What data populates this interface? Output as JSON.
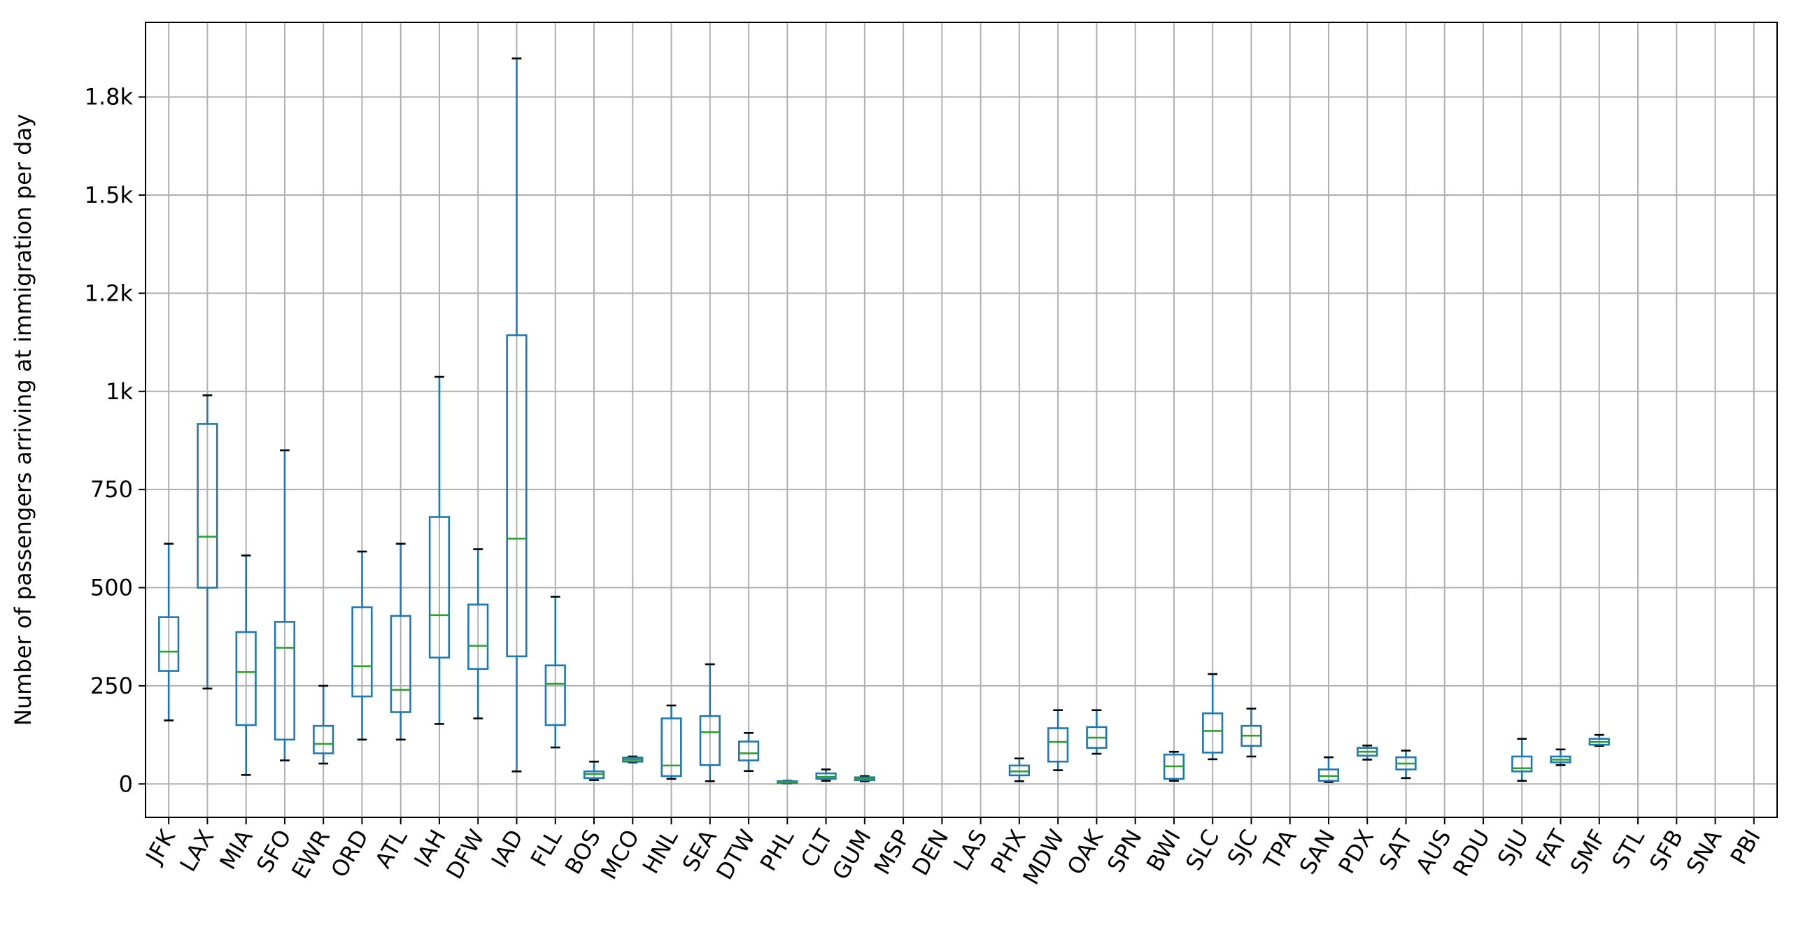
{
  "chart_data": {
    "type": "box",
    "title": "",
    "xlabel": "",
    "ylabel": "Number of passengers arriving at immigration per day",
    "ylim": [
      -85,
      1940
    ],
    "yticks": [
      {
        "value": 0,
        "label": "0"
      },
      {
        "value": 250,
        "label": "250"
      },
      {
        "value": 500,
        "label": "500"
      },
      {
        "value": 750,
        "label": "750"
      },
      {
        "value": 1000,
        "label": "1k"
      },
      {
        "value": 1250,
        "label": "1.2k"
      },
      {
        "value": 1500,
        "label": "1.5k"
      },
      {
        "value": 1750,
        "label": "1.8k"
      }
    ],
    "grid": true,
    "colors": {
      "box": "#1f77b4",
      "median": "#2ca02c",
      "caps": "#000000",
      "grid": "#b0b0b0"
    },
    "categories": [
      "JFK",
      "LAX",
      "MIA",
      "SFO",
      "EWR",
      "ORD",
      "ATL",
      "IAH",
      "DFW",
      "IAD",
      "FLL",
      "BOS",
      "MCO",
      "HNL",
      "SEA",
      "DTW",
      "PHL",
      "CLT",
      "GUM",
      "MSP",
      "DEN",
      "LAS",
      "PHX",
      "MDW",
      "OAK",
      "SPN",
      "BWI",
      "SLC",
      "SJC",
      "TPA",
      "SAN",
      "PDX",
      "SAT",
      "AUS",
      "RDU",
      "SJU",
      "FAT",
      "SMF",
      "STL",
      "SFB",
      "SNA",
      "PBI"
    ],
    "boxes": [
      {
        "label": "JFK",
        "whislo": 162,
        "q1": 288,
        "med": 337,
        "q3": 425,
        "whishi": 612
      },
      {
        "label": "LAX",
        "whislo": 243,
        "q1": 500,
        "med": 630,
        "q3": 917,
        "whishi": 990
      },
      {
        "label": "MIA",
        "whislo": 23,
        "q1": 150,
        "med": 285,
        "q3": 387,
        "whishi": 582
      },
      {
        "label": "SFO",
        "whislo": 60,
        "q1": 113,
        "med": 347,
        "q3": 413,
        "whishi": 850
      },
      {
        "label": "EWR",
        "whislo": 52,
        "q1": 78,
        "med": 102,
        "q3": 148,
        "whishi": 250
      },
      {
        "label": "ORD",
        "whislo": 113,
        "q1": 223,
        "med": 300,
        "q3": 450,
        "whishi": 592
      },
      {
        "label": "ATL",
        "whislo": 113,
        "q1": 183,
        "med": 240,
        "q3": 428,
        "whishi": 612
      },
      {
        "label": "IAH",
        "whislo": 153,
        "q1": 322,
        "med": 430,
        "q3": 680,
        "whishi": 1037
      },
      {
        "label": "DFW",
        "whislo": 167,
        "q1": 293,
        "med": 352,
        "q3": 457,
        "whishi": 598
      },
      {
        "label": "IAD",
        "whislo": 32,
        "q1": 325,
        "med": 625,
        "q3": 1143,
        "whishi": 1848
      },
      {
        "label": "FLL",
        "whislo": 93,
        "q1": 150,
        "med": 255,
        "q3": 302,
        "whishi": 477
      },
      {
        "label": "BOS",
        "whislo": 10,
        "q1": 15,
        "med": 25,
        "q3": 32,
        "whishi": 57
      },
      {
        "label": "MCO",
        "whislo": 55,
        "q1": 57,
        "med": 62,
        "q3": 67,
        "whishi": 70
      },
      {
        "label": "HNL",
        "whislo": 13,
        "q1": 20,
        "med": 47,
        "q3": 167,
        "whishi": 200
      },
      {
        "label": "SEA",
        "whislo": 7,
        "q1": 48,
        "med": 132,
        "q3": 173,
        "whishi": 305
      },
      {
        "label": "DTW",
        "whislo": 33,
        "q1": 60,
        "med": 78,
        "q3": 108,
        "whishi": 130
      },
      {
        "label": "PHL",
        "whislo": 2,
        "q1": 3,
        "med": 5,
        "q3": 7,
        "whishi": 8
      },
      {
        "label": "CLT",
        "whislo": 8,
        "q1": 13,
        "med": 18,
        "q3": 27,
        "whishi": 37
      },
      {
        "label": "GUM",
        "whislo": 7,
        "q1": 10,
        "med": 13,
        "q3": 17,
        "whishi": 20
      },
      {
        "label": "PHX",
        "whislo": 7,
        "q1": 22,
        "med": 32,
        "q3": 47,
        "whishi": 65
      },
      {
        "label": "MDW",
        "whislo": 35,
        "q1": 57,
        "med": 107,
        "q3": 142,
        "whishi": 188
      },
      {
        "label": "OAK",
        "whislo": 77,
        "q1": 92,
        "med": 118,
        "q3": 145,
        "whishi": 188
      },
      {
        "label": "BWI",
        "whislo": 8,
        "q1": 13,
        "med": 45,
        "q3": 75,
        "whishi": 82
      },
      {
        "label": "SLC",
        "whislo": 63,
        "q1": 80,
        "med": 135,
        "q3": 180,
        "whishi": 280
      },
      {
        "label": "SJC",
        "whislo": 70,
        "q1": 97,
        "med": 123,
        "q3": 148,
        "whishi": 192
      },
      {
        "label": "SAN",
        "whislo": 5,
        "q1": 8,
        "med": 20,
        "q3": 37,
        "whishi": 68
      },
      {
        "label": "PDX",
        "whislo": 62,
        "q1": 72,
        "med": 82,
        "q3": 92,
        "whishi": 98
      },
      {
        "label": "SAT",
        "whislo": 15,
        "q1": 37,
        "med": 52,
        "q3": 68,
        "whishi": 85
      },
      {
        "label": "SJU",
        "whislo": 8,
        "q1": 32,
        "med": 40,
        "q3": 70,
        "whishi": 115
      },
      {
        "label": "FAT",
        "whislo": 48,
        "q1": 55,
        "med": 62,
        "q3": 70,
        "whishi": 88
      },
      {
        "label": "SMF",
        "whislo": 97,
        "q1": 100,
        "med": 107,
        "q3": 115,
        "whishi": 125
      }
    ]
  }
}
